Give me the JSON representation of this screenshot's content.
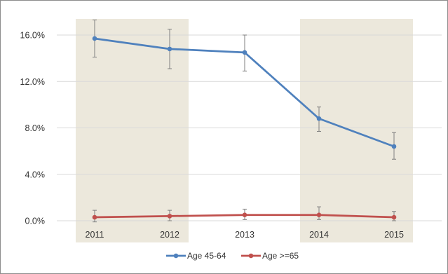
{
  "chart_data": {
    "type": "line",
    "title": "",
    "xlabel": "",
    "ylabel": "",
    "categories": [
      "2011",
      "2012",
      "2013",
      "2014",
      "2015"
    ],
    "ylim": [
      0,
      0.16
    ],
    "y_ticks": [
      0,
      0.04,
      0.08,
      0.12,
      0.16
    ],
    "y_tick_labels": [
      "0.0%",
      "4.0%",
      "8.0%",
      "12.0%",
      "16.0%"
    ],
    "grid": true,
    "legend_position": "bottom",
    "shaded_categories": [
      "2011",
      "2012",
      "2014",
      "2015"
    ],
    "colors": {
      "shade": "#ece8dc",
      "grid": "#d9d9d9",
      "error_bar": "#7f7f7f"
    },
    "series": [
      {
        "name": "Age 45-64",
        "color": "#4f81bd",
        "values": [
          0.157,
          0.148,
          0.145,
          0.088,
          0.064
        ],
        "error_low": [
          0.141,
          0.131,
          0.129,
          0.077,
          0.053
        ],
        "error_high": [
          0.173,
          0.165,
          0.16,
          0.098,
          0.076
        ]
      },
      {
        "name": "Age >=65",
        "color": "#c0504d",
        "values": [
          0.003,
          0.004,
          0.005,
          0.005,
          0.003
        ],
        "error_low": [
          -0.001,
          0.0,
          0.001,
          0.001,
          0.0
        ],
        "error_high": [
          0.009,
          0.009,
          0.01,
          0.012,
          0.008
        ]
      }
    ]
  }
}
